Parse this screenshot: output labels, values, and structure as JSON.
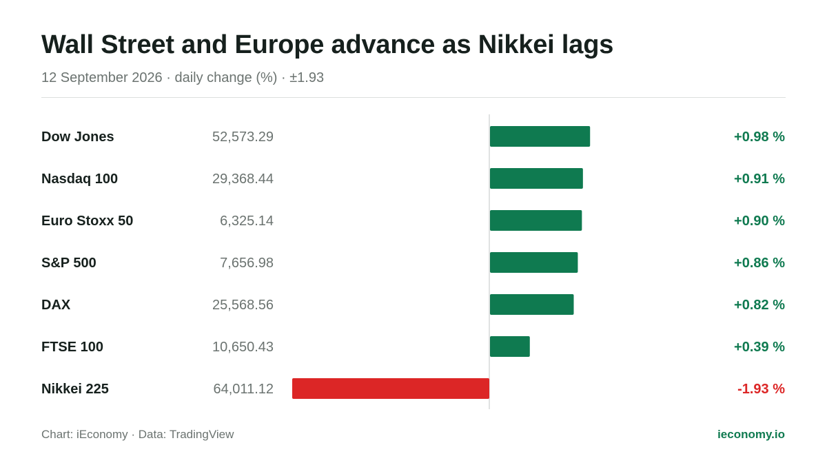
{
  "title": "Wall Street and Europe advance as Nikkei lags",
  "subtitle": "12 September 2026 · daily change (%) · ±1.93",
  "footer": {
    "source": "Chart: iEconomy · Data: TradingView",
    "brand": "ieconomy.io"
  },
  "colors": {
    "positive": "#0f7a50",
    "negative": "#dc2626",
    "axis": "#d5d9d8",
    "label": "#16201d",
    "value": "#6b7370"
  },
  "chart_data": {
    "type": "bar",
    "orientation": "horizontal",
    "categories": [
      "Dow Jones",
      "Nasdaq 100",
      "Euro Stoxx 50",
      "S&P 500",
      "DAX",
      "FTSE 100",
      "Nikkei 225"
    ],
    "index_levels": [
      "52,573.29",
      "29,368.44",
      "6,325.14",
      "7,656.98",
      "25,568.56",
      "10,650.43",
      "64,011.12"
    ],
    "values": [
      0.98,
      0.91,
      0.9,
      0.86,
      0.82,
      0.39,
      -1.93
    ],
    "value_labels": [
      "+0.98 %",
      "+0.91 %",
      "+0.90 %",
      "+0.86 %",
      "+0.82 %",
      "+0.39 %",
      "-1.93 %"
    ],
    "xlim": [
      -1.93,
      1.93
    ],
    "grid": false,
    "legend": "none"
  }
}
